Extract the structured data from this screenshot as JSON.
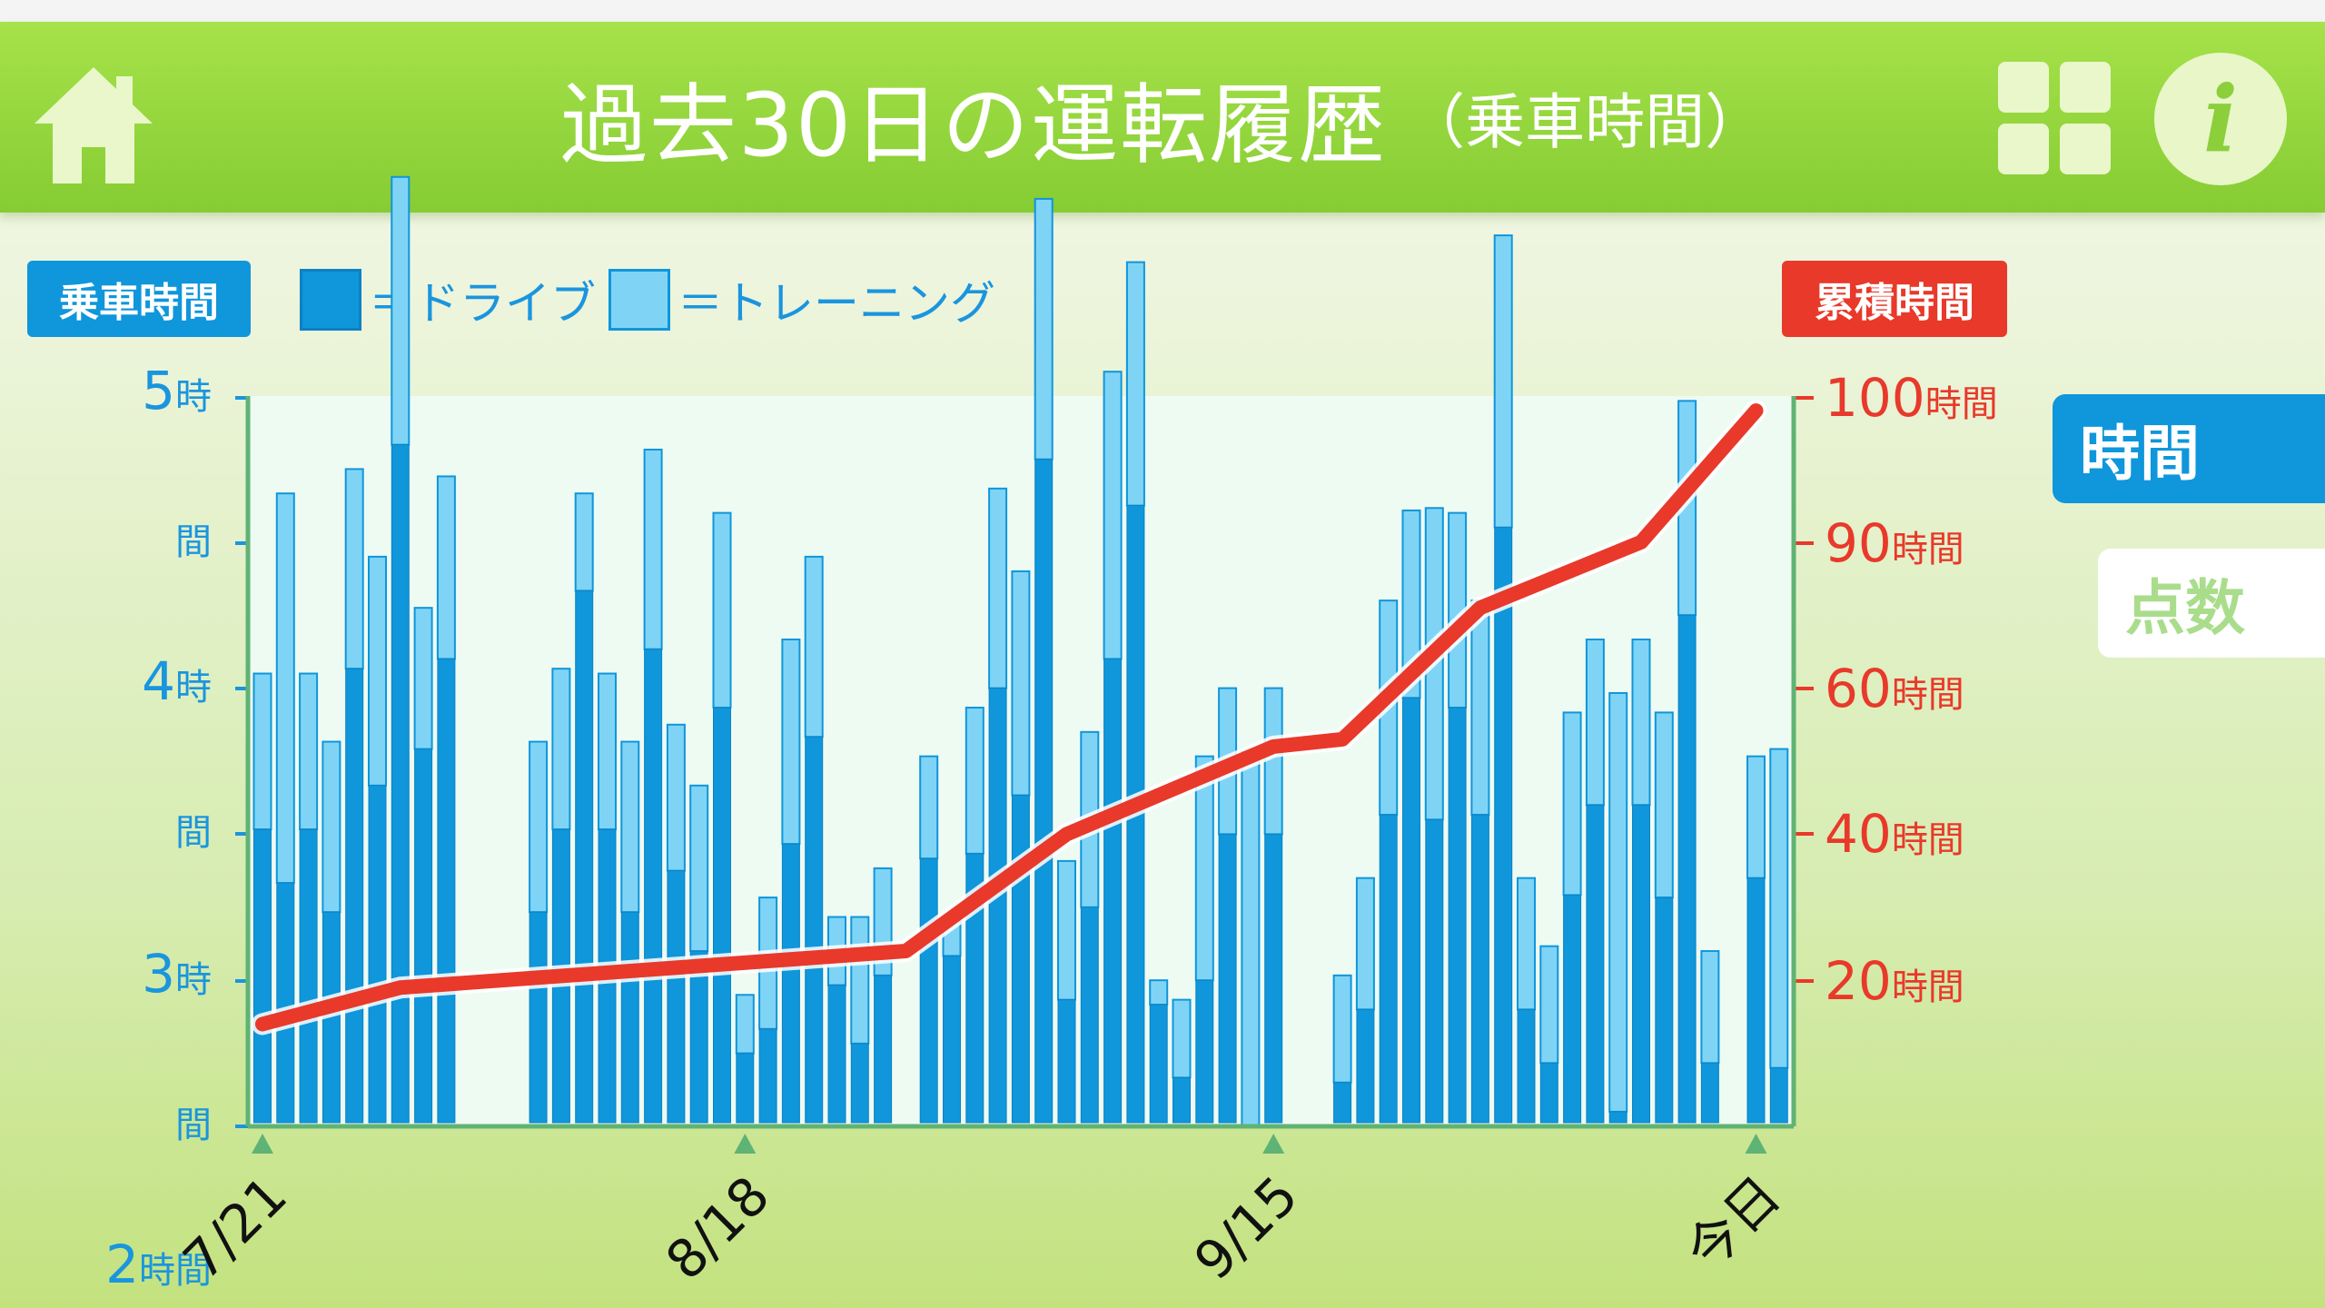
{
  "header": {
    "title": "過去30日の運転履歴",
    "subtitle": "（乗車時間）",
    "home_icon": "home-icon",
    "grid_icon": "grid-icon",
    "info_label": "i",
    "color_start": "#a6e24a",
    "color_end": "#86cc33"
  },
  "badges": {
    "left": "乗車時間",
    "right": "累積時間"
  },
  "legend": {
    "drive": "＝ドライブ",
    "training": "＝トレーニング"
  },
  "tabs": {
    "time": "時間",
    "score": "点数"
  },
  "colors": {
    "drive": "#0f96db",
    "training": "#7fd4f6",
    "cumulative": "#e8392a",
    "axis": "#5fb374"
  },
  "chart_data": {
    "type": "bar",
    "y_left_ticks": [
      "5時",
      "間",
      "4時",
      "間",
      "3時",
      "間",
      "2時間"
    ],
    "y_right_ticks": [
      "100時間",
      "90時間",
      "60時間",
      "40時間",
      "20時間"
    ],
    "x_ticks": [
      {
        "label": "7/21",
        "index": 0
      },
      {
        "label": "8/18",
        "index": 21
      },
      {
        "label": "9/15",
        "index": 44
      },
      {
        "label": "今日",
        "index": 65
      }
    ],
    "ylim_left": [
      2,
      5
    ],
    "ylim_right": [
      0,
      100
    ],
    "series": [
      {
        "name": "ドライブ",
        "values": [
          3.22,
          3.0,
          3.22,
          2.88,
          3.88,
          3.4,
          4.8,
          3.55,
          3.92,
          null,
          null,
          null,
          2.88,
          3.22,
          4.2,
          3.22,
          2.88,
          3.96,
          3.05,
          2.72,
          3.72,
          2.3,
          2.4,
          3.16,
          3.6,
          2.58,
          2.34,
          2.62,
          null,
          3.1,
          2.7,
          3.12,
          3.8,
          3.36,
          4.74,
          2.52,
          2.9,
          3.92,
          4.55,
          2.5,
          2.2,
          2.6,
          3.2,
          2.0,
          3.2,
          null,
          null,
          2.18,
          2.48,
          3.28,
          3.76,
          3.26,
          3.72,
          3.28,
          4.46,
          2.48,
          2.26,
          2.95,
          3.32,
          2.06,
          3.32,
          2.94,
          4.1,
          2.26,
          null,
          3.02,
          2.24
        ]
      },
      {
        "name": "トレーニング",
        "values": [
          0.64,
          1.6,
          0.64,
          0.7,
          0.82,
          0.94,
          1.1,
          0.58,
          0.75,
          null,
          null,
          null,
          0.7,
          0.66,
          0.4,
          0.64,
          0.7,
          0.82,
          0.6,
          0.68,
          0.8,
          0.24,
          0.54,
          0.84,
          0.74,
          0.28,
          0.52,
          0.44,
          null,
          0.42,
          0.16,
          0.6,
          0.82,
          0.92,
          1.07,
          0.57,
          0.72,
          1.18,
          1.0,
          0.1,
          0.32,
          0.92,
          0.6,
          1.54,
          0.6,
          null,
          null,
          0.44,
          0.54,
          0.88,
          0.77,
          1.28,
          0.8,
          0.88,
          1.2,
          0.54,
          0.48,
          0.75,
          0.68,
          1.72,
          0.68,
          0.76,
          0.88,
          0.46,
          null,
          0.5,
          1.31
        ]
      }
    ],
    "cumulative": {
      "name": "累積時間",
      "points": [
        [
          0,
          14
        ],
        [
          6,
          19
        ],
        [
          28,
          24
        ],
        [
          35,
          40
        ],
        [
          44,
          52
        ],
        [
          47,
          53
        ],
        [
          53,
          71
        ],
        [
          60,
          80
        ],
        [
          65,
          98
        ]
      ]
    }
  }
}
